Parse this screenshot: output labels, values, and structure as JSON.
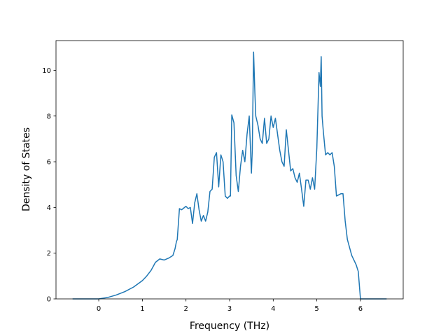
{
  "chart_data": {
    "type": "line",
    "title": "",
    "xlabel": "Frequency (THz)",
    "ylabel": "Density of States",
    "xlim": [
      -0.98,
      6.98
    ],
    "ylim": [
      0,
      11.3
    ],
    "xticks": [
      0,
      1,
      2,
      3,
      4,
      5,
      6
    ],
    "yticks": [
      0,
      2,
      4,
      6,
      8,
      10
    ],
    "grid": false,
    "legend": "none",
    "colors": {
      "line": "#1f77b4",
      "axes": "#000000",
      "background": "#ffffff"
    },
    "series": [
      {
        "x": [
          -0.6,
          0.0,
          0.2,
          0.4,
          0.6,
          0.8,
          1.0,
          1.1,
          1.2,
          1.3,
          1.4,
          1.5,
          1.6,
          1.7,
          1.75,
          1.78,
          1.8,
          1.85,
          1.9,
          2.0,
          2.05,
          2.1,
          2.15,
          2.2,
          2.25,
          2.3,
          2.35,
          2.4,
          2.45,
          2.5,
          2.55,
          2.6,
          2.65,
          2.7,
          2.75,
          2.8,
          2.85,
          2.9,
          2.95,
          3.0,
          3.02,
          3.05,
          3.1,
          3.15,
          3.2,
          3.25,
          3.3,
          3.35,
          3.4,
          3.45,
          3.5,
          3.52,
          3.55,
          3.58,
          3.6,
          3.65,
          3.7,
          3.75,
          3.8,
          3.85,
          3.9,
          3.95,
          4.0,
          4.05,
          4.1,
          4.15,
          4.2,
          4.25,
          4.3,
          4.35,
          4.4,
          4.45,
          4.5,
          4.55,
          4.6,
          4.65,
          4.7,
          4.75,
          4.8,
          4.85,
          4.9,
          4.95,
          5.0,
          5.05,
          5.08,
          5.1,
          5.12,
          5.15,
          5.2,
          5.25,
          5.3,
          5.35,
          5.4,
          5.45,
          5.5,
          5.55,
          5.6,
          5.65,
          5.7,
          5.8,
          5.9,
          5.95,
          6.0,
          6.1,
          6.6
        ],
        "y": [
          0.0,
          0.0,
          0.06,
          0.17,
          0.32,
          0.52,
          0.8,
          1.0,
          1.25,
          1.6,
          1.75,
          1.7,
          1.78,
          1.9,
          2.2,
          2.5,
          2.6,
          3.95,
          3.9,
          4.05,
          3.95,
          4.0,
          3.3,
          4.2,
          4.6,
          3.9,
          3.4,
          3.65,
          3.4,
          3.8,
          4.7,
          4.8,
          6.2,
          6.4,
          4.9,
          6.3,
          6.0,
          4.5,
          4.4,
          4.5,
          4.5,
          8.05,
          7.7,
          5.4,
          4.7,
          5.8,
          6.5,
          6.0,
          7.2,
          8.0,
          5.5,
          6.5,
          10.8,
          9.0,
          8.0,
          7.6,
          7.0,
          6.8,
          7.9,
          6.8,
          7.0,
          8.0,
          7.5,
          7.9,
          7.2,
          6.5,
          6.0,
          5.8,
          7.4,
          6.5,
          5.6,
          5.7,
          5.3,
          5.1,
          5.5,
          4.8,
          4.05,
          5.2,
          5.2,
          4.8,
          5.3,
          4.8,
          6.6,
          9.9,
          9.3,
          10.6,
          8.0,
          7.3,
          6.3,
          6.4,
          6.3,
          6.4,
          5.8,
          4.5,
          4.55,
          4.6,
          4.6,
          3.4,
          2.6,
          1.9,
          1.5,
          1.2,
          0.0,
          0.0,
          0.0
        ]
      }
    ]
  }
}
